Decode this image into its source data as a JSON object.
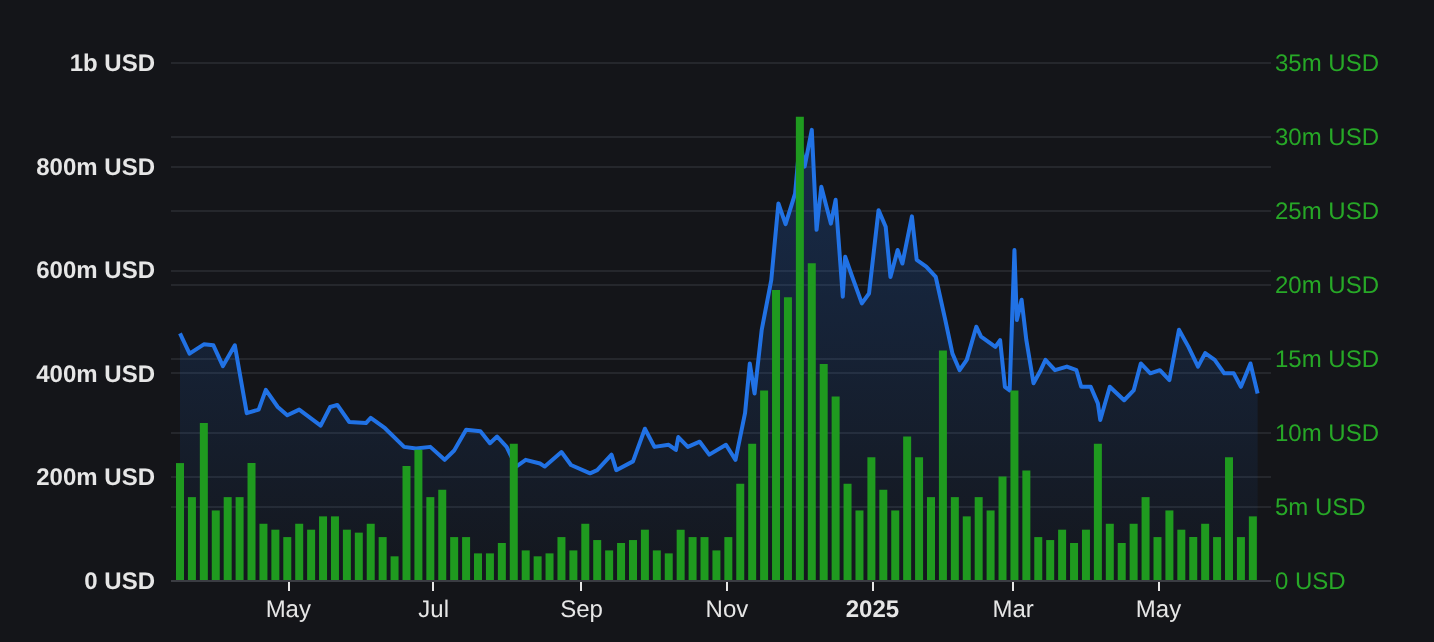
{
  "chart_data": {
    "type": "area",
    "xlim": [
      "2024-03-17",
      "2025-06-13"
    ],
    "xticks": [
      {
        "value": "2024-05-01",
        "label": "May"
      },
      {
        "value": "2024-07-01",
        "label": "Jul"
      },
      {
        "value": "2024-09-01",
        "label": "Sep"
      },
      {
        "value": "2024-11-01",
        "label": "Nov"
      },
      {
        "value": "2025-01-01",
        "label": "2025"
      },
      {
        "value": "2025-03-01",
        "label": "Mar"
      },
      {
        "value": "2025-05-01",
        "label": "May"
      }
    ],
    "ylim": [
      0,
      1000000000
    ],
    "yticks": [
      {
        "value": 0,
        "label": "0 USD"
      },
      {
        "value": 200000000,
        "label": "200m USD"
      },
      {
        "value": 400000000,
        "label": "400m USD"
      },
      {
        "value": 600000000,
        "label": "600m USD"
      },
      {
        "value": 800000000,
        "label": "800m USD"
      },
      {
        "value": 1000000000,
        "label": "1b USD"
      }
    ],
    "y2lim": [
      0,
      35
    ],
    "y2ticks": [
      {
        "value": 0,
        "label": "0 USD"
      },
      {
        "value": 5,
        "label": "5m USD"
      },
      {
        "value": 10,
        "label": "10m USD"
      },
      {
        "value": 15,
        "label": "15m USD"
      },
      {
        "value": 20,
        "label": "20m USD"
      },
      {
        "value": 25,
        "label": "25m USD"
      },
      {
        "value": 30,
        "label": "30m USD"
      },
      {
        "value": 35,
        "label": "35m USD"
      }
    ],
    "grid": "y",
    "series": [
      {
        "color": "#2172e5",
        "x": [
          "2024-03-17",
          "2024-03-21",
          "2024-03-27",
          "2024-03-31",
          "2024-04-04",
          "2024-04-09",
          "2024-04-14",
          "2024-04-19",
          "2024-04-22",
          "2024-04-27",
          "2024-05-01",
          "2024-05-06",
          "2024-05-15",
          "2024-05-19",
          "2024-05-22",
          "2024-05-27",
          "2024-06-03",
          "2024-06-05",
          "2024-06-11",
          "2024-06-19",
          "2024-06-24",
          "2024-06-30",
          "2024-07-06",
          "2024-07-10",
          "2024-07-15",
          "2024-07-21",
          "2024-07-25",
          "2024-07-28",
          "2024-08-01",
          "2024-08-05",
          "2024-08-09",
          "2024-08-15",
          "2024-08-17",
          "2024-08-24",
          "2024-08-28",
          "2024-09-05",
          "2024-09-08",
          "2024-09-14",
          "2024-09-16",
          "2024-09-23",
          "2024-09-28",
          "2024-10-02",
          "2024-10-08",
          "2024-10-11",
          "2024-10-12",
          "2024-10-16",
          "2024-10-21",
          "2024-10-25",
          "2024-11-01",
          "2024-11-05",
          "2024-11-09",
          "2024-11-11",
          "2024-11-13",
          "2024-11-16",
          "2024-11-20",
          "2024-11-23",
          "2024-11-26",
          "2024-11-30",
          "2024-12-02",
          "2024-12-04",
          "2024-12-07",
          "2024-12-09",
          "2024-12-11",
          "2024-12-15",
          "2024-12-17",
          "2024-12-20",
          "2024-12-21",
          "2024-12-24",
          "2024-12-28",
          "2024-12-31",
          "2025-01-04",
          "2025-01-07",
          "2025-01-09",
          "2025-01-12",
          "2025-01-14",
          "2025-01-18",
          "2025-01-20",
          "2025-01-24",
          "2025-01-28",
          "2025-02-01",
          "2025-02-04",
          "2025-02-07",
          "2025-02-10",
          "2025-02-14",
          "2025-02-16",
          "2025-02-22",
          "2025-02-24",
          "2025-02-26",
          "2025-02-28",
          "2025-03-02",
          "2025-03-03",
          "2025-03-05",
          "2025-03-07",
          "2025-03-10",
          "2025-03-13",
          "2025-03-15",
          "2025-03-19",
          "2025-03-24",
          "2025-03-28",
          "2025-03-30",
          "2025-04-03",
          "2025-04-06",
          "2025-04-07",
          "2025-04-11",
          "2025-04-14",
          "2025-04-17",
          "2025-04-21",
          "2025-04-24",
          "2025-04-28",
          "2025-05-02",
          "2025-05-06",
          "2025-05-10",
          "2025-05-14",
          "2025-05-18",
          "2025-05-21",
          "2025-05-25",
          "2025-05-29",
          "2025-06-02",
          "2025-06-05",
          "2025-06-09",
          "2025-06-12"
        ],
        "values": [
          476000000.0,
          437000000.0,
          455000000.0,
          453000000.0,
          413000000.0,
          453000000.0,
          322000000.0,
          329000000.0,
          367000000.0,
          334000000.0,
          318000000.0,
          329000000.0,
          298000000.0,
          334000000.0,
          338000000.0,
          305000000.0,
          303000000.0,
          313000000.0,
          293000000.0,
          257000000.0,
          254000000.0,
          257000000.0,
          232000000.0,
          250000000.0,
          290000000.0,
          287000000.0,
          264000000.0,
          277000000.0,
          257000000.0,
          219000000.0,
          232000000.0,
          225000000.0,
          219000000.0,
          247000000.0,
          222000000.0,
          206000000.0,
          212000000.0,
          242000000.0,
          212000000.0,
          229000000.0,
          292000000.0,
          257000000.0,
          261000000.0,
          251000000.0,
          276000000.0,
          257000000.0,
          267000000.0,
          242000000.0,
          261000000.0,
          232000000.0,
          322000000.0,
          418000000.0,
          360000000.0,
          483000000.0,
          579000000.0,
          727000000.0,
          687000000.0,
          746000000.0,
          849000000.0,
          798000000.0,
          869000000.0,
          676000000.0,
          759000000.0,
          688000000.0,
          734000000.0,
          547000000.0,
          624000000.0,
          585000000.0,
          534000000.0,
          553000000.0,
          714000000.0,
          682000000.0,
          585000000.0,
          637000000.0,
          611000000.0,
          702000000.0,
          618000000.0,
          605000000.0,
          585000000.0,
          502000000.0,
          437000000.0,
          405000000.0,
          425000000.0,
          489000000.0,
          470000000.0,
          450000000.0,
          463000000.0,
          373000000.0,
          366000000.0,
          637000000.0,
          502000000.0,
          541000000.0,
          463000000.0,
          380000000.0,
          405000000.0,
          425000000.0,
          405000000.0,
          412000000.0,
          405000000.0,
          373000000.0,
          373000000.0,
          341000000.0,
          309000000.0,
          373000000.0,
          360000000.0,
          347000000.0,
          366000000.0,
          418000000.0,
          399000000.0,
          405000000.0,
          386000000.0,
          483000000.0,
          450000000.0,
          412000000.0,
          438000000.0,
          425000000.0,
          399000000.0,
          399000000.0,
          373000000.0,
          418000000.0,
          360000000.0
        ]
      },
      {
        "type": "bar",
        "axis": "y2",
        "color": "#1f9a1f",
        "x": [
          "2024-03-17",
          "2024-03-22",
          "2024-03-27",
          "2024-04-01",
          "2024-04-06",
          "2024-04-11",
          "2024-04-16",
          "2024-04-21",
          "2024-04-26",
          "2024-05-01",
          "2024-05-06",
          "2024-05-11",
          "2024-05-16",
          "2024-05-21",
          "2024-05-26",
          "2024-05-31",
          "2024-06-05",
          "2024-06-10",
          "2024-06-15",
          "2024-06-20",
          "2024-06-25",
          "2024-06-30",
          "2024-07-05",
          "2024-07-10",
          "2024-07-15",
          "2024-07-20",
          "2024-07-25",
          "2024-07-30",
          "2024-08-04",
          "2024-08-09",
          "2024-08-14",
          "2024-08-19",
          "2024-08-24",
          "2024-08-29",
          "2024-09-03",
          "2024-09-08",
          "2024-09-13",
          "2024-09-18",
          "2024-09-23",
          "2024-09-28",
          "2024-10-03",
          "2024-10-08",
          "2024-10-13",
          "2024-10-18",
          "2024-10-23",
          "2024-10-28",
          "2024-11-02",
          "2024-11-07",
          "2024-11-12",
          "2024-11-17",
          "2024-11-22",
          "2024-11-27",
          "2024-12-02",
          "2024-12-07",
          "2024-12-12",
          "2024-12-17",
          "2024-12-22",
          "2024-12-27",
          "2025-01-01",
          "2025-01-06",
          "2025-01-11",
          "2025-01-16",
          "2025-01-21",
          "2025-01-26",
          "2025-01-31",
          "2025-02-05",
          "2025-02-10",
          "2025-02-15",
          "2025-02-20",
          "2025-02-25",
          "2025-03-02",
          "2025-03-07",
          "2025-03-12",
          "2025-03-17",
          "2025-03-22",
          "2025-03-27",
          "2025-04-01",
          "2025-04-06",
          "2025-04-11",
          "2025-04-16",
          "2025-04-21",
          "2025-04-26",
          "2025-05-01",
          "2025-05-06",
          "2025-05-11",
          "2025-05-16",
          "2025-05-21",
          "2025-05-26",
          "2025-05-31",
          "2025-06-05",
          "2025-06-10"
        ],
        "values": [
          7.9,
          5.6,
          10.6,
          4.7,
          5.6,
          5.6,
          7.9,
          3.8,
          3.4,
          2.9,
          3.8,
          3.4,
          4.3,
          4.3,
          3.4,
          3.2,
          3.8,
          2.9,
          1.6,
          7.7,
          8.8,
          5.6,
          6.1,
          2.9,
          2.9,
          1.8,
          1.8,
          2.5,
          9.2,
          2.0,
          1.6,
          1.8,
          2.9,
          2.0,
          3.8,
          2.7,
          2.0,
          2.5,
          2.7,
          3.4,
          2.0,
          1.8,
          3.4,
          2.9,
          2.9,
          2.0,
          2.9,
          6.5,
          9.2,
          12.8,
          19.6,
          19.1,
          31.3,
          21.4,
          14.6,
          12.4,
          6.5,
          4.7,
          8.3,
          6.1,
          4.7,
          9.7,
          8.3,
          5.6,
          15.5,
          5.6,
          4.3,
          5.6,
          4.7,
          7.0,
          12.8,
          7.4,
          2.9,
          2.7,
          3.4,
          2.5,
          3.4,
          9.2,
          3.8,
          2.5,
          3.8,
          5.6,
          2.9,
          4.7,
          3.4,
          2.9,
          3.8,
          2.9,
          8.3,
          2.9,
          4.3
        ]
      }
    ]
  }
}
